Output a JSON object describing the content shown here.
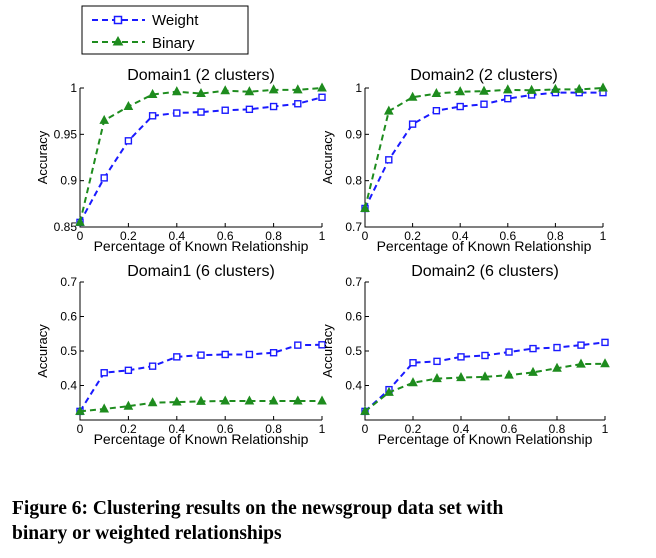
{
  "legend": {
    "weight_label": "Weight",
    "binary_label": "Binary"
  },
  "colors": {
    "weight": "#1a1aff",
    "binary": "#1e8c1e"
  },
  "caption": {
    "line1": "Figure 6:  Clustering results on the newsgroup data set with",
    "line2": "binary or weighted relationships"
  },
  "chart_data": [
    {
      "type": "line",
      "title": "Domain1  (2 clusters)",
      "xlabel": "Percentage of Known Relationship",
      "ylabel": "Accuracy",
      "xlim": [
        0,
        1
      ],
      "ylim": [
        0.85,
        1
      ],
      "xticks": [
        0,
        0.2,
        0.4,
        0.6,
        0.8,
        1
      ],
      "xtick_labels": [
        "0",
        "0.2",
        "0.4",
        "0.6",
        "0.8",
        "1"
      ],
      "yticks": [
        0.85,
        0.9,
        0.95,
        1
      ],
      "ytick_labels": [
        "0.85",
        "0.9",
        "0.95",
        "1"
      ],
      "x": [
        0,
        0.1,
        0.2,
        0.3,
        0.4,
        0.5,
        0.6,
        0.7,
        0.8,
        0.9,
        1
      ],
      "series": [
        {
          "name": "Weight",
          "values": [
            0.855,
            0.903,
            0.943,
            0.97,
            0.973,
            0.974,
            0.976,
            0.977,
            0.98,
            0.983,
            0.99
          ]
        },
        {
          "name": "Binary",
          "values": [
            0.855,
            0.965,
            0.98,
            0.993,
            0.996,
            0.994,
            0.997,
            0.996,
            0.998,
            0.998,
            1.0
          ]
        }
      ]
    },
    {
      "type": "line",
      "title": "Domain2  (2 clusters)",
      "xlabel": "Percentage of Known Relationship",
      "ylabel": "Accuracy",
      "xlim": [
        0,
        1
      ],
      "ylim": [
        0.7,
        1
      ],
      "xticks": [
        0,
        0.2,
        0.4,
        0.6,
        0.8,
        1
      ],
      "xtick_labels": [
        "0",
        "0.2",
        "0.4",
        "0.6",
        "0.8",
        "1"
      ],
      "yticks": [
        0.7,
        0.8,
        0.9,
        1
      ],
      "ytick_labels": [
        "0.7",
        "0.8",
        "0.9",
        "1"
      ],
      "x": [
        0,
        0.1,
        0.2,
        0.3,
        0.4,
        0.5,
        0.6,
        0.7,
        0.8,
        0.9,
        1
      ],
      "series": [
        {
          "name": "Weight",
          "values": [
            0.74,
            0.845,
            0.922,
            0.951,
            0.96,
            0.965,
            0.977,
            0.985,
            0.99,
            0.99,
            0.99
          ]
        },
        {
          "name": "Binary",
          "values": [
            0.74,
            0.95,
            0.98,
            0.988,
            0.992,
            0.993,
            0.996,
            0.995,
            0.997,
            0.997,
            1.0
          ]
        }
      ]
    },
    {
      "type": "line",
      "title": "Domain1   (6 clusters)",
      "xlabel": "Percentage of Known Relationship",
      "ylabel": "Accuracy",
      "xlim": [
        0,
        1
      ],
      "ylim": [
        0.3,
        0.7
      ],
      "xticks": [
        0,
        0.2,
        0.4,
        0.6,
        0.8,
        1
      ],
      "xtick_labels": [
        "0",
        "0.2",
        "0.4",
        "0.6",
        "0.8",
        "1"
      ],
      "yticks": [
        0.4,
        0.5,
        0.6,
        0.7
      ],
      "ytick_labels": [
        "0.4",
        "0.5",
        "0.6",
        "0.7"
      ],
      "x": [
        0,
        0.1,
        0.2,
        0.3,
        0.4,
        0.5,
        0.6,
        0.7,
        0.8,
        0.9,
        1
      ],
      "series": [
        {
          "name": "Weight",
          "values": [
            0.325,
            0.437,
            0.444,
            0.456,
            0.483,
            0.488,
            0.49,
            0.49,
            0.495,
            0.517,
            0.518
          ]
        },
        {
          "name": "Binary",
          "values": [
            0.325,
            0.332,
            0.34,
            0.35,
            0.352,
            0.354,
            0.355,
            0.355,
            0.355,
            0.355,
            0.355
          ]
        }
      ]
    },
    {
      "type": "line",
      "title": "Domain2   (6 clusters)",
      "xlabel": "Percentage of Known  Relationship",
      "ylabel": "Accuracy",
      "xlim": [
        0,
        1
      ],
      "ylim": [
        0.3,
        0.7
      ],
      "xticks": [
        0,
        0.2,
        0.4,
        0.6,
        0.8,
        1
      ],
      "xtick_labels": [
        "0",
        "0.2",
        "0.4",
        "0.6",
        "0.8",
        "1"
      ],
      "yticks": [
        0.4,
        0.5,
        0.6,
        0.7
      ],
      "ytick_labels": [
        "0.4",
        "0.5",
        "0.6",
        "0.7"
      ],
      "x": [
        0,
        0.1,
        0.2,
        0.3,
        0.4,
        0.5,
        0.6,
        0.7,
        0.8,
        0.9,
        1
      ],
      "series": [
        {
          "name": "Weight",
          "values": [
            0.325,
            0.388,
            0.466,
            0.47,
            0.483,
            0.487,
            0.497,
            0.507,
            0.51,
            0.517,
            0.525
          ]
        },
        {
          "name": "Binary",
          "values": [
            0.325,
            0.38,
            0.408,
            0.42,
            0.423,
            0.425,
            0.43,
            0.438,
            0.45,
            0.462,
            0.463
          ]
        }
      ]
    }
  ]
}
